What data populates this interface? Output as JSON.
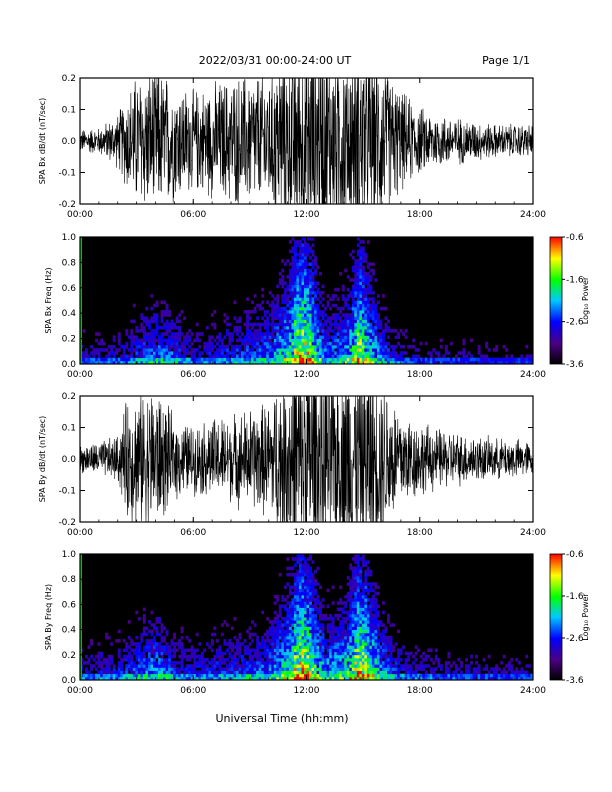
{
  "header": {
    "date_range": "2022/03/31  00:00-24:00 UT",
    "page": "Page 1/1"
  },
  "x_axis": {
    "label": "Universal Time (hh:mm)",
    "ticks": [
      "00:00",
      "06:00",
      "12:00",
      "18:00",
      "24:00"
    ],
    "range_hours": [
      0,
      24
    ]
  },
  "colorbar": {
    "label": "Log₁₀ Power",
    "ticks": [
      "-0.6",
      "-1.6",
      "-2.6",
      "-3.6"
    ],
    "range": [
      -3.6,
      -0.6
    ],
    "colors": [
      "#000000",
      "#4b0082",
      "#0000ff",
      "#00c8ff",
      "#00ff00",
      "#ffff00",
      "#ff0000"
    ]
  },
  "chart_data": [
    {
      "type": "line",
      "title": "",
      "ylabel": "SPA Bx dB/dt (nT/sec)",
      "ylim": [
        -0.2,
        0.2
      ],
      "yticks": [
        "0.2",
        "0.1",
        "0.0",
        "-0.1",
        "-0.2"
      ],
      "xlim": [
        0,
        24
      ],
      "series_color": "#000000",
      "amplitude_envelope": [
        {
          "x": 0,
          "y": 0.035
        },
        {
          "x": 1,
          "y": 0.04
        },
        {
          "x": 2,
          "y": 0.08
        },
        {
          "x": 2.5,
          "y": 0.15
        },
        {
          "x": 3,
          "y": 0.2
        },
        {
          "x": 4,
          "y": 0.22
        },
        {
          "x": 5,
          "y": 0.18
        },
        {
          "x": 6,
          "y": 0.15
        },
        {
          "x": 7,
          "y": 0.17
        },
        {
          "x": 8,
          "y": 0.19
        },
        {
          "x": 9,
          "y": 0.2
        },
        {
          "x": 10,
          "y": 0.21
        },
        {
          "x": 11,
          "y": 0.3
        },
        {
          "x": 12,
          "y": 0.35
        },
        {
          "x": 13,
          "y": 0.3
        },
        {
          "x": 14,
          "y": 0.28
        },
        {
          "x": 15,
          "y": 0.3
        },
        {
          "x": 16,
          "y": 0.25
        },
        {
          "x": 17,
          "y": 0.15
        },
        {
          "x": 18,
          "y": 0.1
        },
        {
          "x": 19,
          "y": 0.08
        },
        {
          "x": 20,
          "y": 0.07
        },
        {
          "x": 21,
          "y": 0.06
        },
        {
          "x": 22,
          "y": 0.05
        },
        {
          "x": 23,
          "y": 0.05
        },
        {
          "x": 24,
          "y": 0.05
        }
      ]
    },
    {
      "type": "heatmap",
      "title": "",
      "ylabel": "SPA Bx Freq (Hz)",
      "ylim": [
        0,
        1.0
      ],
      "yticks": [
        "1.0",
        "0.8",
        "0.6",
        "0.4",
        "0.2",
        "0.0"
      ],
      "xlim": [
        0,
        24
      ],
      "zlim": [
        -3.6,
        -0.6
      ],
      "activity": [
        {
          "x": 0,
          "level": 0.3
        },
        {
          "x": 2,
          "level": 0.35
        },
        {
          "x": 3,
          "level": 0.45
        },
        {
          "x": 4,
          "level": 0.55
        },
        {
          "x": 5,
          "level": 0.5
        },
        {
          "x": 6,
          "level": 0.35
        },
        {
          "x": 7,
          "level": 0.4
        },
        {
          "x": 8,
          "level": 0.45
        },
        {
          "x": 9,
          "level": 0.5
        },
        {
          "x": 10,
          "level": 0.55
        },
        {
          "x": 11,
          "level": 0.75
        },
        {
          "x": 11.7,
          "level": 0.95
        },
        {
          "x": 12.3,
          "level": 0.85
        },
        {
          "x": 13,
          "level": 0.55
        },
        {
          "x": 14,
          "level": 0.6
        },
        {
          "x": 14.8,
          "level": 0.9
        },
        {
          "x": 15.5,
          "level": 0.7
        },
        {
          "x": 16,
          "level": 0.5
        },
        {
          "x": 17,
          "level": 0.35
        },
        {
          "x": 18,
          "level": 0.3
        },
        {
          "x": 20,
          "level": 0.28
        },
        {
          "x": 22,
          "level": 0.25
        },
        {
          "x": 24,
          "level": 0.25
        }
      ]
    },
    {
      "type": "line",
      "title": "",
      "ylabel": "SPA By dB/dt (nT/sec)",
      "ylim": [
        -0.2,
        0.2
      ],
      "yticks": [
        "0.2",
        "0.1",
        "0.0",
        "-0.1",
        "-0.2"
      ],
      "xlim": [
        0,
        24
      ],
      "series_color": "#000000",
      "amplitude_envelope": [
        {
          "x": 0,
          "y": 0.04
        },
        {
          "x": 1,
          "y": 0.05
        },
        {
          "x": 2,
          "y": 0.07
        },
        {
          "x": 2.5,
          "y": 0.18
        },
        {
          "x": 3,
          "y": 0.2
        },
        {
          "x": 4,
          "y": 0.22
        },
        {
          "x": 5,
          "y": 0.12
        },
        {
          "x": 6,
          "y": 0.1
        },
        {
          "x": 7,
          "y": 0.12
        },
        {
          "x": 8,
          "y": 0.13
        },
        {
          "x": 9,
          "y": 0.15
        },
        {
          "x": 10,
          "y": 0.17
        },
        {
          "x": 11,
          "y": 0.3
        },
        {
          "x": 12,
          "y": 0.35
        },
        {
          "x": 13,
          "y": 0.32
        },
        {
          "x": 14,
          "y": 0.3
        },
        {
          "x": 15,
          "y": 0.32
        },
        {
          "x": 16,
          "y": 0.25
        },
        {
          "x": 17,
          "y": 0.15
        },
        {
          "x": 18,
          "y": 0.11
        },
        {
          "x": 19,
          "y": 0.09
        },
        {
          "x": 20,
          "y": 0.08
        },
        {
          "x": 21,
          "y": 0.07
        },
        {
          "x": 22,
          "y": 0.06
        },
        {
          "x": 23,
          "y": 0.06
        },
        {
          "x": 24,
          "y": 0.05
        }
      ]
    },
    {
      "type": "heatmap",
      "title": "",
      "ylabel": "SPA By Freq (Hz)",
      "ylim": [
        0,
        1.0
      ],
      "yticks": [
        "1.0",
        "0.8",
        "0.6",
        "0.4",
        "0.2",
        "0.0"
      ],
      "xlim": [
        0,
        24
      ],
      "zlim": [
        -3.6,
        -0.6
      ],
      "activity": [
        {
          "x": 0,
          "level": 0.35
        },
        {
          "x": 2,
          "level": 0.4
        },
        {
          "x": 3,
          "level": 0.5
        },
        {
          "x": 4,
          "level": 0.6
        },
        {
          "x": 5,
          "level": 0.45
        },
        {
          "x": 6,
          "level": 0.4
        },
        {
          "x": 7,
          "level": 0.45
        },
        {
          "x": 8,
          "level": 0.45
        },
        {
          "x": 9,
          "level": 0.5
        },
        {
          "x": 10,
          "level": 0.55
        },
        {
          "x": 11,
          "level": 0.75
        },
        {
          "x": 11.7,
          "level": 0.95
        },
        {
          "x": 12.3,
          "level": 0.85
        },
        {
          "x": 13,
          "level": 0.6
        },
        {
          "x": 14,
          "level": 0.7
        },
        {
          "x": 14.8,
          "level": 0.92
        },
        {
          "x": 15.5,
          "level": 0.8
        },
        {
          "x": 16,
          "level": 0.6
        },
        {
          "x": 17,
          "level": 0.4
        },
        {
          "x": 18,
          "level": 0.35
        },
        {
          "x": 20,
          "level": 0.32
        },
        {
          "x": 22,
          "level": 0.3
        },
        {
          "x": 24,
          "level": 0.3
        }
      ]
    }
  ]
}
